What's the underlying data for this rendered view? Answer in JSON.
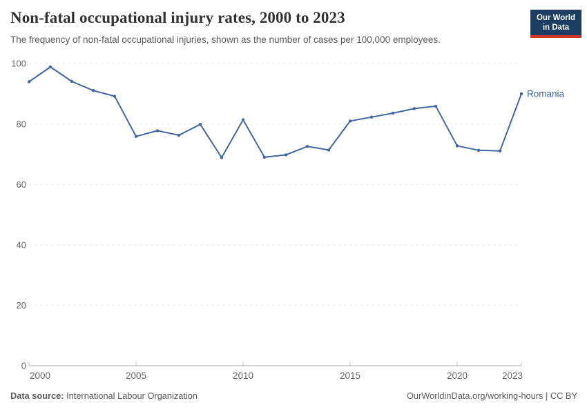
{
  "header": {
    "title": "Non-fatal occupational injury rates, 2000 to 2023",
    "subtitle": "The frequency of non-fatal occupational injuries, shown as the number of cases per 100,000 employees."
  },
  "logo": {
    "line1": "Our World",
    "line2": "in Data"
  },
  "chart_data": {
    "type": "line",
    "title": "Non-fatal occupational injury rates, 2000 to 2023",
    "xlabel": "",
    "ylabel": "",
    "xlim": [
      2000,
      2023
    ],
    "ylim": [
      0,
      100
    ],
    "xticks": [
      2000,
      2005,
      2010,
      2015,
      2020,
      2023
    ],
    "yticks": [
      0,
      20,
      40,
      60,
      80,
      100
    ],
    "grid": "horizontal-dashed",
    "legend_position": "label-at-line-end",
    "series": [
      {
        "name": "Romania",
        "color": "#41659e",
        "x": [
          2000,
          2001,
          2002,
          2003,
          2004,
          2005,
          2006,
          2007,
          2008,
          2009,
          2010,
          2011,
          2012,
          2013,
          2014,
          2015,
          2016,
          2017,
          2018,
          2019,
          2020,
          2021,
          2022,
          2023
        ],
        "values": [
          94.0,
          98.9,
          94.1,
          91.1,
          89.2,
          75.9,
          77.8,
          76.3,
          79.9,
          68.9,
          81.4,
          69.0,
          69.8,
          72.6,
          71.4,
          81.0,
          82.3,
          83.6,
          85.1,
          85.9,
          72.8,
          71.3,
          71.1,
          90.0
        ]
      }
    ]
  },
  "footer": {
    "datasource_label": "Data source:",
    "datasource_value": " International Labour Organization",
    "attribution": "OurWorldinData.org/working-hours | CC BY"
  },
  "colors": {
    "accent_blue": "#41659e",
    "logo_navy": "#1d3d63",
    "logo_red": "#cc342c",
    "gridline": "#e2e2e2",
    "axis_line": "#a8a8a8",
    "tick_mark": "#c2c2c2",
    "tick_label": "#666666",
    "title_text": "#333333",
    "subtitle_text": "#5b5b5b"
  }
}
